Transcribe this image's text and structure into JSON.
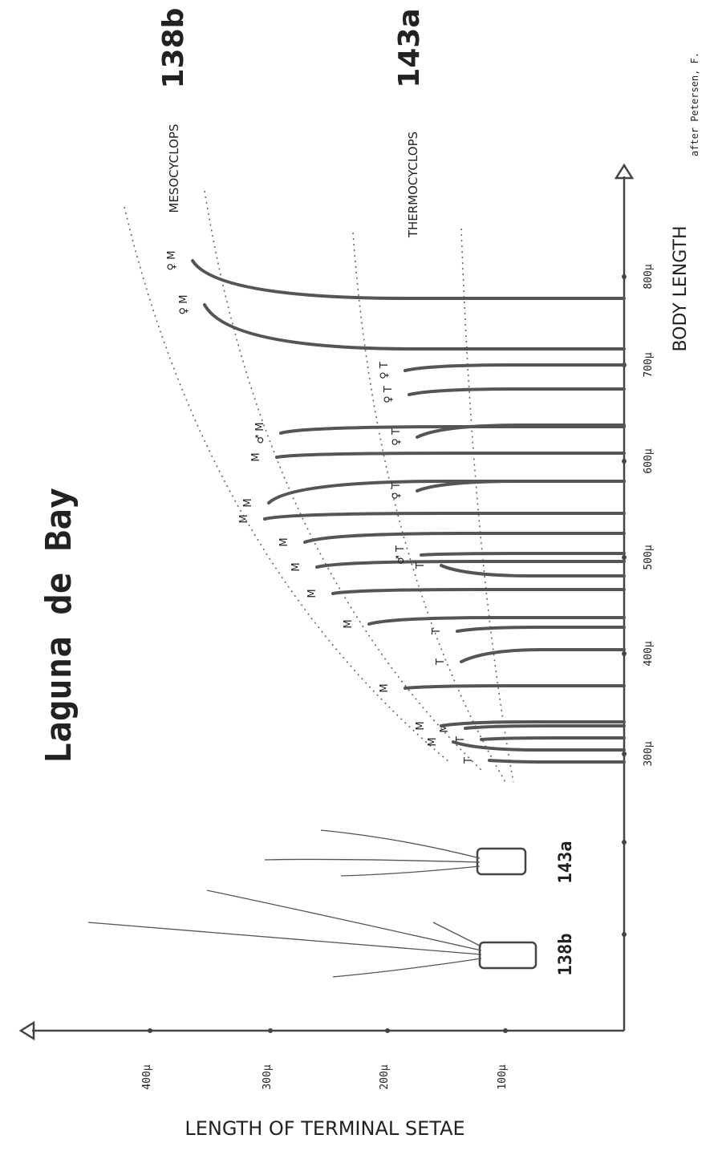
{
  "title": "Laguna de Bay",
  "header_labels": [
    "138b",
    "143a"
  ],
  "genus_labels": [
    "MESOCYCLOPS",
    "THERMOCYCLOPS"
  ],
  "credit": "after Petersen, F.",
  "x_axis": {
    "label": "BODY LENGTH",
    "ticks": [
      "300μ",
      "400μ",
      "500μ",
      "600μ",
      "700μ",
      "800μ"
    ]
  },
  "y_axis": {
    "label": "LENGTH OF TERMINAL SETAE",
    "ticks": [
      "100μ",
      "200μ",
      "300μ",
      "400μ"
    ]
  },
  "specimens": [
    "♀ M",
    "♀ M",
    "♀ T",
    "♀ T",
    "♂ M",
    "♀ T",
    "M",
    "M",
    "♀ T",
    "M",
    "M",
    "M",
    "♂ T",
    "M",
    "T",
    "M",
    "T",
    "M",
    "T",
    "T",
    "M",
    "M",
    "M",
    "T"
  ],
  "drawings": [
    "138b",
    "143a"
  ]
}
